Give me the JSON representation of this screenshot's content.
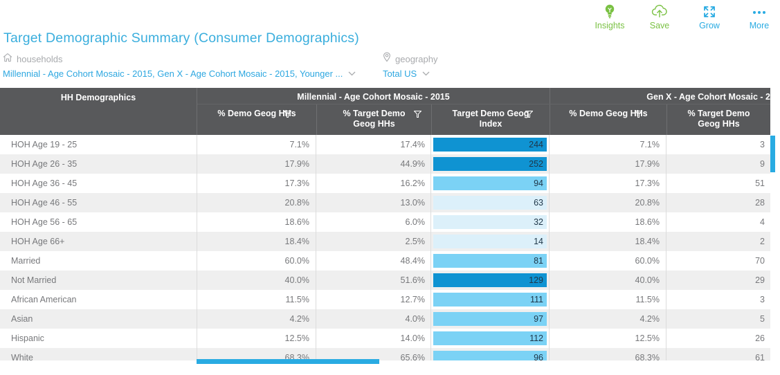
{
  "toolbar": {
    "items": [
      {
        "id": "insights",
        "label": "Insights"
      },
      {
        "id": "save",
        "label": "Save"
      },
      {
        "id": "grow",
        "label": "Grow"
      },
      {
        "id": "more",
        "label": "More"
      }
    ]
  },
  "header": {
    "title": "Target Demographic Summary (Consumer Demographics)"
  },
  "filters": {
    "households": {
      "label": "households",
      "value": "Millennial - Age Cohort Mosaic - 2015, Gen X - Age Cohort Mosaic - 2015, Younger ..."
    },
    "geography": {
      "label": "geography",
      "value": "Total US"
    }
  },
  "table": {
    "row_header": "HH Demographics",
    "groups": [
      {
        "label": "Millennial - Age Cohort Mosaic - 2015"
      },
      {
        "label": "Gen X - Age Cohort Mosaic - 2"
      }
    ],
    "columns": [
      {
        "label": "% Demo Geog HHs",
        "filter": true
      },
      {
        "label": "% Target Demo Geog HHs",
        "filter": true
      },
      {
        "label": "Target Demo Geog Index",
        "filter": true
      },
      {
        "label": "% Demo Geog HHs",
        "filter": true
      },
      {
        "label": "% Target Demo Geog HHs",
        "filter": false
      }
    ],
    "rows": [
      {
        "label": "HOH Age 19 - 25",
        "m_demo": "7.1%",
        "m_target": "17.4%",
        "m_index": 244,
        "g_demo": "7.1%",
        "g_target": "3"
      },
      {
        "label": "HOH Age 26 - 35",
        "m_demo": "17.9%",
        "m_target": "44.9%",
        "m_index": 252,
        "g_demo": "17.9%",
        "g_target": "9"
      },
      {
        "label": "HOH Age 36 - 45",
        "m_demo": "17.3%",
        "m_target": "16.2%",
        "m_index": 94,
        "g_demo": "17.3%",
        "g_target": "51"
      },
      {
        "label": "HOH Age 46 - 55",
        "m_demo": "20.8%",
        "m_target": "13.0%",
        "m_index": 63,
        "g_demo": "20.8%",
        "g_target": "28"
      },
      {
        "label": "HOH Age 56 - 65",
        "m_demo": "18.6%",
        "m_target": "6.0%",
        "m_index": 32,
        "g_demo": "18.6%",
        "g_target": "4"
      },
      {
        "label": "HOH Age 66+",
        "m_demo": "18.4%",
        "m_target": "2.5%",
        "m_index": 14,
        "g_demo": "18.4%",
        "g_target": "2"
      },
      {
        "label": "Married",
        "m_demo": "60.0%",
        "m_target": "48.4%",
        "m_index": 81,
        "g_demo": "60.0%",
        "g_target": "70"
      },
      {
        "label": "Not Married",
        "m_demo": "40.0%",
        "m_target": "51.6%",
        "m_index": 129,
        "g_demo": "40.0%",
        "g_target": "29"
      },
      {
        "label": "African American",
        "m_demo": "11.5%",
        "m_target": "12.7%",
        "m_index": 111,
        "g_demo": "11.5%",
        "g_target": "3"
      },
      {
        "label": "Asian",
        "m_demo": "4.2%",
        "m_target": "4.0%",
        "m_index": 97,
        "g_demo": "4.2%",
        "g_target": "5"
      },
      {
        "label": "Hispanic",
        "m_demo": "12.5%",
        "m_target": "14.0%",
        "m_index": 112,
        "g_demo": "12.5%",
        "g_target": "26"
      },
      {
        "label": "White",
        "m_demo": "68.3%",
        "m_target": "65.6%",
        "m_index": 96,
        "g_demo": "68.3%",
        "g_target": "61"
      }
    ]
  },
  "colors": {
    "accent_blue": "#29abe2",
    "green": "#7ac143",
    "title_blue": "#3aaedd",
    "link_blue": "#2da7e0",
    "header_bg": "#58595b",
    "bar_dark": "#0f93d2",
    "bar_mid": "#7bd2f5",
    "bar_light": "#dcf0fa",
    "bar_text": "#1e3648",
    "index_thresholds": {
      "dark": 120,
      "mid": 80
    }
  }
}
